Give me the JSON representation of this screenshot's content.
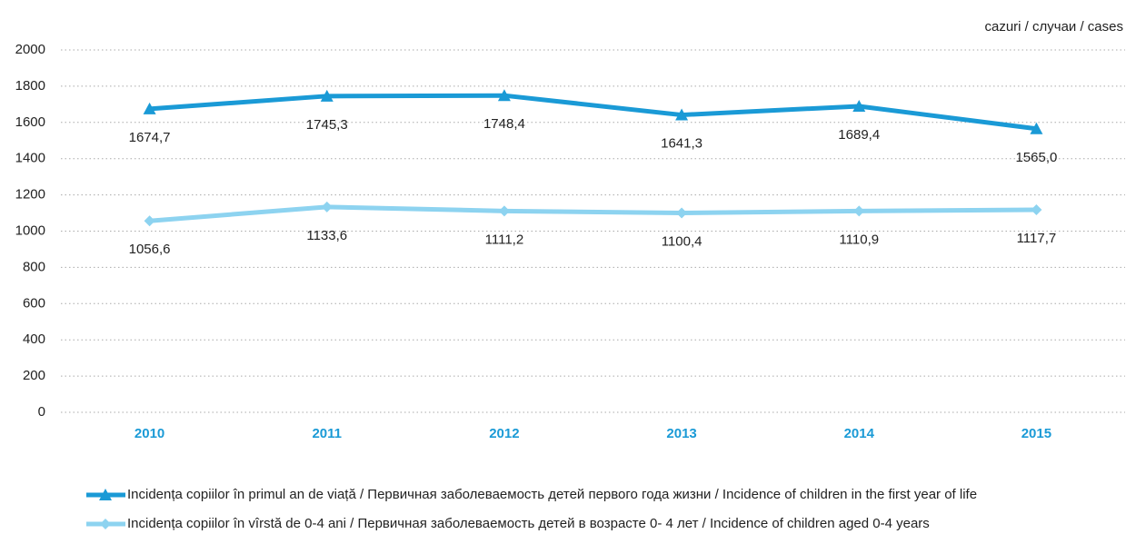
{
  "chart_data": {
    "type": "line",
    "unit_label": "cazuri / случаи / cases",
    "categories": [
      "2010",
      "2011",
      "2012",
      "2013",
      "2014",
      "2015"
    ],
    "series": [
      {
        "name": "Incidența copiilor în primul an de viață / Первичная заболеваемость  детей первого года жизни / Incidence of children in the first year of life",
        "color": "#1a9ad6",
        "marker": "triangle",
        "values": [
          1674.7,
          1745.3,
          1748.4,
          1641.3,
          1689.4,
          1565.0
        ],
        "value_labels": [
          "1674,7",
          "1745,3",
          "1748,4",
          "1641,3",
          "1689,4",
          "1565,0"
        ]
      },
      {
        "name": "Incidența copiilor în vîrstă de 0-4 ani / Первичная заболеваемость детей в возрасте 0- 4 лет / Incidence of children aged 0-4 years",
        "color": "#8dd3f0",
        "marker": "diamond",
        "values": [
          1056.6,
          1133.6,
          1111.2,
          1100.4,
          1110.9,
          1117.7
        ],
        "value_labels": [
          "1056,6",
          "1133,6",
          "1111,2",
          "1100,4",
          "1110,9",
          "1117,7"
        ]
      }
    ],
    "ylim": [
      0,
      2000
    ],
    "yticks": [
      0,
      200,
      400,
      600,
      800,
      1000,
      1200,
      1400,
      1600,
      1800,
      2000
    ],
    "grid": true
  }
}
